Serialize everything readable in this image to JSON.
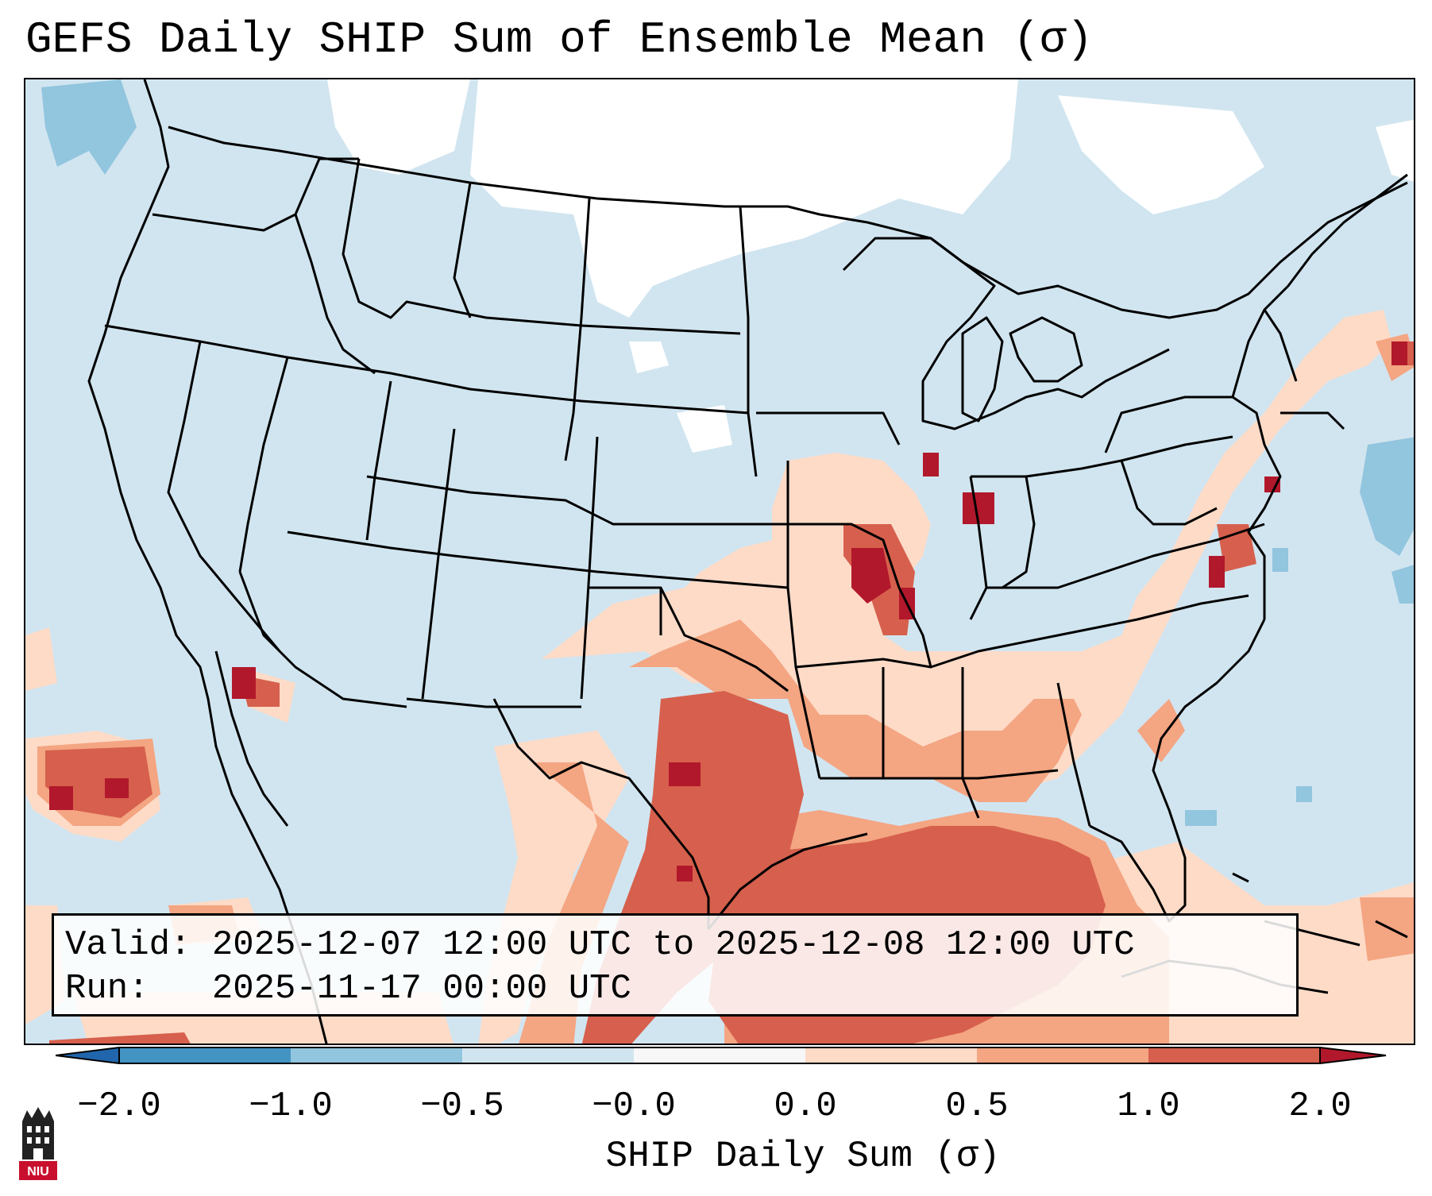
{
  "title": "GEFS Daily SHIP Sum of Ensemble Mean (σ)",
  "info": {
    "valid_line": "Valid: 2025-12-07 12:00 UTC to 2025-12-08 12:00 UTC",
    "run_line": "Run:   2025-11-17 00:00 UTC"
  },
  "colorbar": {
    "label": "SHIP Daily Sum (σ)",
    "ticks": [
      "−2.0",
      "−1.0",
      "−0.5",
      "−0.0",
      "0.0",
      "0.5",
      "1.0",
      "2.0"
    ],
    "segment_colors": [
      "#4393c3",
      "#92c5de",
      "#d1e5f0",
      "#f7f7f7",
      "#fddbc7",
      "#f4a582",
      "#d6604d"
    ],
    "under_color": "#2166ac",
    "over_color": "#b2182b"
  },
  "palette": {
    "white": "#ffffff",
    "light_blue": "#d1e5f0",
    "mid_blue": "#92c5de",
    "light_red": "#fddbc7",
    "mid_red": "#f4a582",
    "red": "#d6604d",
    "dark_red": "#b2182b"
  },
  "logo": {
    "text": "NIU",
    "icon": "university-logo-icon"
  }
}
